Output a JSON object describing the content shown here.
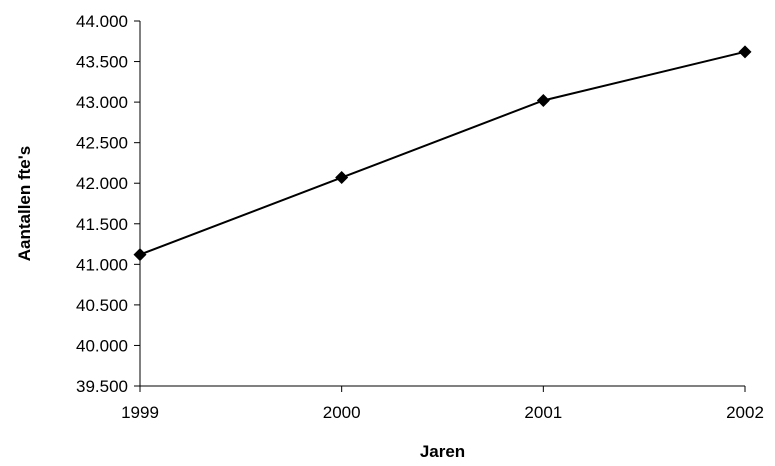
{
  "chart_data": {
    "type": "line",
    "title": "",
    "xlabel": "Jaren",
    "ylabel": "Aantallen fte's",
    "categories": [
      "1999",
      "2000",
      "2001",
      "2002"
    ],
    "series": [
      {
        "values": [
          41120,
          42070,
          43020,
          43620
        ],
        "color": "#000000",
        "marker": "diamond"
      }
    ],
    "ylim": [
      39500,
      44000
    ],
    "yticks": [
      39500,
      40000,
      40500,
      41000,
      41500,
      42000,
      42500,
      43000,
      43500,
      44000
    ],
    "ytick_labels": [
      "39.500",
      "40.000",
      "40.500",
      "41.000",
      "41.500",
      "42.000",
      "42.500",
      "43.000",
      "43.500",
      "44.000"
    ],
    "grid": false,
    "legend": "none"
  }
}
